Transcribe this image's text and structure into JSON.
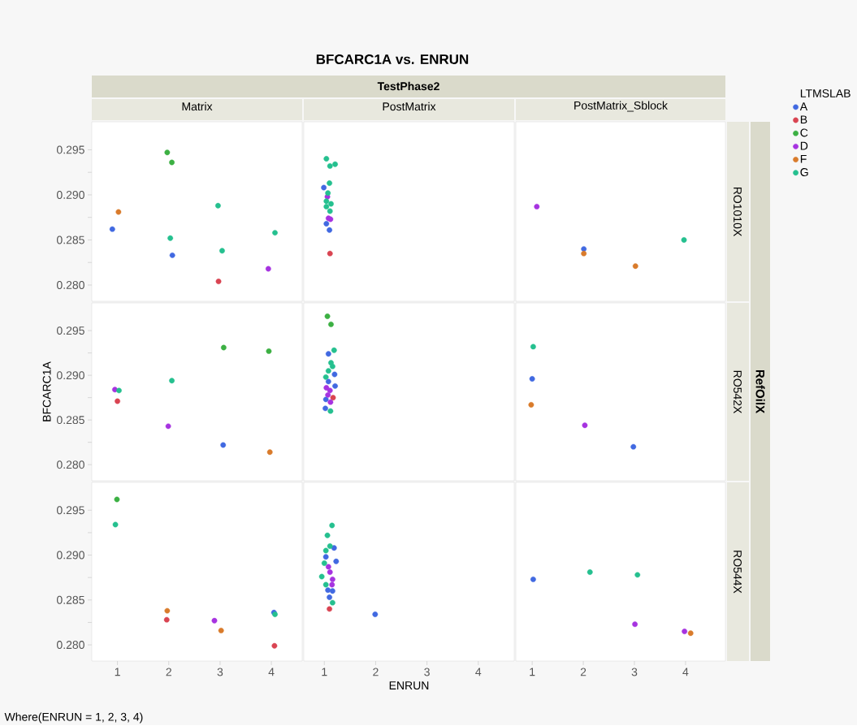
{
  "chart_data": [
    {
      "type": "scatter",
      "title": "Matrix",
      "annotations": [
        "BFCARC1A vs. ENRUN",
        "TestPhase2",
        "RefOilX",
        "Where(ENRUN = 1, 2, 3, 4)"
      ],
      "xlim": [
        0.5,
        4.6
      ],
      "ylim": [
        0.2782,
        0.2981
      ],
      "yticks": [
        {
          "value": 0.28,
          "label": "0.280"
        },
        {
          "value": 0.2825,
          "label": null
        },
        {
          "value": 0.285,
          "label": "0.285"
        },
        {
          "value": 0.2875,
          "label": null
        },
        {
          "value": 0.29,
          "label": "0.290"
        },
        {
          "value": 0.2925,
          "label": null
        },
        {
          "value": 0.295,
          "label": "0.295"
        }
      ],
      "tick_labels": "y",
      "marker": "circle",
      "series": [
        {
          "color": "#4169e1",
          "x": [
            0.9,
            2.07
          ],
          "values": [
            0.2862,
            0.2833
          ]
        },
        {
          "color": "#d94452",
          "x": [
            2.97
          ],
          "values": [
            0.2804
          ]
        },
        {
          "color": "#3cb043",
          "x": [
            1.97,
            2.06
          ],
          "values": [
            0.2947,
            0.2936
          ]
        },
        {
          "color": "#a633e0",
          "x": [
            3.94
          ],
          "values": [
            0.2818
          ]
        },
        {
          "color": "#d97b2b",
          "x": [
            1.02
          ],
          "values": [
            0.2881
          ]
        },
        {
          "color": "#25c08f",
          "x": [
            2.03,
            2.96,
            3.04,
            4.07
          ],
          "values": [
            0.2852,
            0.2888,
            0.2838,
            0.2858
          ]
        }
      ]
    },
    {
      "type": "scatter",
      "title": "PostMatrix",
      "xlim": [
        0.6,
        4.7
      ],
      "ylim": [
        0.2782,
        0.2981
      ],
      "tick_labels": false,
      "marker": "circle",
      "series": [
        {
          "color": "#4169e1",
          "x": [
            0.99,
            1.04,
            1.1
          ],
          "values": [
            0.2908,
            0.2868,
            0.2861
          ]
        },
        {
          "color": "#d94452",
          "x": [
            1.11
          ],
          "values": [
            0.2835
          ]
        },
        {
          "color": "#a633e0",
          "x": [
            1.06,
            1.12,
            1.08
          ],
          "values": [
            0.2898,
            0.2873,
            0.2874
          ]
        },
        {
          "color": "#25c08f",
          "x": [
            1.04,
            1.11,
            1.21,
            1.1,
            1.07,
            1.04,
            1.13,
            1.04,
            1.11
          ],
          "values": [
            0.294,
            0.2932,
            0.2934,
            0.2913,
            0.2902,
            0.2893,
            0.289,
            0.2887,
            0.2882
          ]
        }
      ]
    },
    {
      "type": "scatter",
      "title": "PostMatrix_Sblock",
      "y2label": "RO1010X",
      "legend": "right",
      "legend_title": "LTMSLAB",
      "xlim": [
        0.68,
        4.78
      ],
      "ylim": [
        0.2782,
        0.2981
      ],
      "tick_labels": false,
      "marker": "circle",
      "series": [
        {
          "name": "A",
          "color": "#4169e1",
          "x": [
            2.01
          ],
          "values": [
            0.284
          ]
        },
        {
          "name": "B",
          "color": "#d94452"
        },
        {
          "name": "C",
          "color": "#3cb043"
        },
        {
          "name": "D",
          "color": "#a633e0",
          "x": [
            1.09
          ],
          "values": [
            0.2887
          ]
        },
        {
          "name": "F",
          "color": "#d97b2b",
          "x": [
            2.01,
            3.02
          ],
          "values": [
            0.2835,
            0.2821
          ]
        },
        {
          "name": "G",
          "color": "#25c08f",
          "x": [
            3.97
          ],
          "values": [
            0.285
          ]
        }
      ]
    },
    {
      "type": "scatter",
      "ylabel": "BFCARC1A",
      "xlim": [
        0.5,
        4.6
      ],
      "ylim": [
        0.2782,
        0.2981
      ],
      "yticks": [
        {
          "value": 0.28,
          "label": "0.280"
        },
        {
          "value": 0.2825,
          "label": null
        },
        {
          "value": 0.285,
          "label": "0.285"
        },
        {
          "value": 0.2875,
          "label": null
        },
        {
          "value": 0.29,
          "label": "0.290"
        },
        {
          "value": 0.2925,
          "label": null
        },
        {
          "value": 0.295,
          "label": "0.295"
        }
      ],
      "tick_labels": "y",
      "marker": "circle",
      "series": [
        {
          "color": "#4169e1",
          "x": [
            3.06
          ],
          "values": [
            0.2822
          ]
        },
        {
          "color": "#d94452",
          "x": [
            1.0
          ],
          "values": [
            0.2871
          ]
        },
        {
          "color": "#3cb043",
          "x": [
            3.07,
            3.95
          ],
          "values": [
            0.2931,
            0.2927
          ]
        },
        {
          "color": "#a633e0",
          "x": [
            0.95,
            1.99
          ],
          "values": [
            0.2884,
            0.2843
          ]
        },
        {
          "color": "#d97b2b",
          "x": [
            3.97
          ],
          "values": [
            0.2814
          ]
        },
        {
          "color": "#25c08f",
          "x": [
            1.03,
            2.06
          ],
          "values": [
            0.2883,
            0.2894
          ]
        }
      ]
    },
    {
      "type": "scatter",
      "xlim": [
        0.6,
        4.7
      ],
      "ylim": [
        0.2782,
        0.2981
      ],
      "tick_labels": false,
      "marker": "circle",
      "series": [
        {
          "color": "#4169e1",
          "x": [
            1.08,
            1.2,
            1.08,
            1.21,
            1.03,
            1.02
          ],
          "values": [
            0.2924,
            0.2901,
            0.2893,
            0.2888,
            0.2873,
            0.2863
          ]
        },
        {
          "color": "#d94452",
          "x": [
            1.17
          ],
          "values": [
            0.2875
          ]
        },
        {
          "color": "#3cb043",
          "x": [
            1.06,
            1.13
          ],
          "values": [
            0.2966,
            0.2957
          ]
        },
        {
          "color": "#a633e0",
          "x": [
            1.04,
            1.11,
            1.07,
            1.12
          ],
          "values": [
            0.2886,
            0.2883,
            0.2878,
            0.287
          ]
        },
        {
          "color": "#25c08f",
          "x": [
            1.19,
            1.13,
            1.16,
            1.08,
            1.03,
            1.12
          ],
          "values": [
            0.2928,
            0.2914,
            0.291,
            0.2905,
            0.2898,
            0.286
          ]
        }
      ]
    },
    {
      "type": "scatter",
      "y2label": "RO542X",
      "xlim": [
        0.68,
        4.78
      ],
      "ylim": [
        0.2782,
        0.2981
      ],
      "tick_labels": false,
      "marker": "circle",
      "series": [
        {
          "color": "#4169e1",
          "x": [
            1.0,
            2.98
          ],
          "values": [
            0.2896,
            0.282
          ]
        },
        {
          "color": "#a633e0",
          "x": [
            2.03
          ],
          "values": [
            0.2844
          ]
        },
        {
          "color": "#d97b2b",
          "x": [
            0.98
          ],
          "values": [
            0.2867
          ]
        },
        {
          "color": "#25c08f",
          "x": [
            1.02
          ],
          "values": [
            0.2932
          ]
        }
      ]
    },
    {
      "type": "scatter",
      "xlim": [
        0.5,
        4.6
      ],
      "ylim": [
        0.2782,
        0.2981
      ],
      "xticks": [
        1,
        2,
        3,
        4
      ],
      "yticks": [
        {
          "value": 0.28,
          "label": "0.280"
        },
        {
          "value": 0.2825,
          "label": null
        },
        {
          "value": 0.285,
          "label": "0.285"
        },
        {
          "value": 0.2875,
          "label": null
        },
        {
          "value": 0.29,
          "label": "0.290"
        },
        {
          "value": 0.2925,
          "label": null
        },
        {
          "value": 0.295,
          "label": "0.295"
        }
      ],
      "marker": "circle",
      "series": [
        {
          "color": "#4169e1",
          "x": [
            4.05
          ],
          "values": [
            0.2836
          ]
        },
        {
          "color": "#d94452",
          "x": [
            1.96,
            4.06
          ],
          "values": [
            0.2828,
            0.2799
          ]
        },
        {
          "color": "#3cb043",
          "x": [
            0.99
          ],
          "values": [
            0.2962
          ]
        },
        {
          "color": "#a633e0",
          "x": [
            2.89
          ],
          "values": [
            0.2827
          ]
        },
        {
          "color": "#d97b2b",
          "x": [
            1.97,
            3.02
          ],
          "values": [
            0.2838,
            0.2816
          ]
        },
        {
          "color": "#25c08f",
          "x": [
            0.96,
            4.07
          ],
          "values": [
            0.2934,
            0.2834
          ]
        }
      ]
    },
    {
      "type": "scatter",
      "xlabel": "ENRUN",
      "xlim": [
        0.6,
        4.7
      ],
      "ylim": [
        0.2782,
        0.2981
      ],
      "xticks": [
        1,
        2,
        3,
        4
      ],
      "tick_labels": "x",
      "marker": "circle",
      "series": [
        {
          "color": "#4169e1",
          "x": [
            1.19,
            1.03,
            1.23,
            1.07,
            1.16,
            1.1,
            1.99
          ],
          "values": [
            0.2908,
            0.2898,
            0.2893,
            0.2861,
            0.286,
            0.2853,
            0.2834
          ]
        },
        {
          "color": "#d94452",
          "x": [
            1.1
          ],
          "values": [
            0.284
          ]
        },
        {
          "color": "#a633e0",
          "x": [
            1.08,
            1.11,
            1.16,
            1.15
          ],
          "values": [
            0.2887,
            0.2881,
            0.2873,
            0.2867
          ]
        },
        {
          "color": "#25c08f",
          "x": [
            1.15,
            1.06,
            1.11,
            1.03,
            1.0,
            0.95,
            1.03,
            1.16
          ],
          "values": [
            0.2933,
            0.2922,
            0.291,
            0.2905,
            0.2891,
            0.2876,
            0.2867,
            0.2847
          ]
        }
      ]
    },
    {
      "type": "scatter",
      "y2label": "RO544X",
      "xlim": [
        0.68,
        4.78
      ],
      "ylim": [
        0.2782,
        0.2981
      ],
      "xticks": [
        1,
        2,
        3,
        4
      ],
      "tick_labels": "x",
      "marker": "circle",
      "series": [
        {
          "color": "#4169e1",
          "x": [
            1.02
          ],
          "values": [
            0.2873
          ]
        },
        {
          "color": "#a633e0",
          "x": [
            3.01,
            3.98
          ],
          "values": [
            0.2823,
            0.2815
          ]
        },
        {
          "color": "#d97b2b",
          "x": [
            4.1
          ],
          "values": [
            0.2813
          ]
        },
        {
          "color": "#25c08f",
          "x": [
            2.13,
            3.06
          ],
          "values": [
            0.2881,
            0.2878
          ]
        }
      ]
    }
  ]
}
